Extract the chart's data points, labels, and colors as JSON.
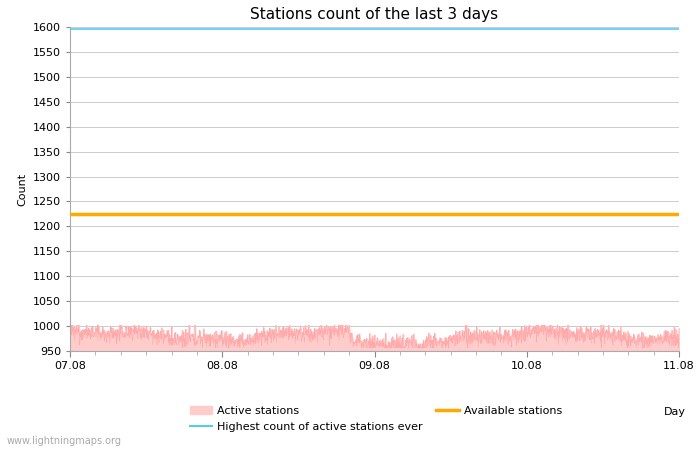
{
  "title": "Stations count of the last 3 days",
  "xlabel": "Day",
  "ylabel": "Count",
  "ylim": [
    950,
    1600
  ],
  "yticks": [
    950,
    1000,
    1050,
    1100,
    1150,
    1200,
    1250,
    1300,
    1350,
    1400,
    1450,
    1500,
    1550,
    1600
  ],
  "x_start": 0,
  "x_end": 96,
  "xtick_positions": [
    0,
    24,
    48,
    72,
    96
  ],
  "xtick_labels": [
    "07.08",
    "08.08",
    "09.08",
    "10.08",
    "11.08"
  ],
  "active_stations_baseline": 980,
  "active_stations_noise_small": 8,
  "active_stations_noise_large": 4,
  "available_stations_level": 1225,
  "highest_ever_level": 1595,
  "active_fill_color": "#ffcccc",
  "active_line_color": "#ffaaaa",
  "available_color": "#ffaa00",
  "highest_color": "#55ccee",
  "background_color": "#ffffff",
  "grid_color": "#cccccc",
  "watermark": "www.lightningmaps.org",
  "title_fontsize": 11,
  "axis_label_fontsize": 8,
  "tick_fontsize": 8,
  "legend_fontsize": 8
}
